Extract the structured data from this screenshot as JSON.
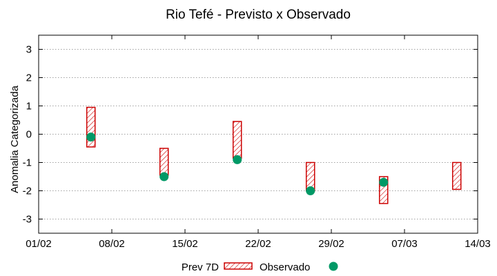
{
  "chart_data": {
    "type": "range-scatter",
    "title": "Rio Tefé - Previsto x Observado",
    "ylabel": "Anomalia Categorizada",
    "xlabel": "",
    "ylim": [
      -3.5,
      3.5
    ],
    "yticks": [
      -3,
      -2,
      -1,
      0,
      1,
      2,
      3
    ],
    "xlim": [
      "2024-02-01",
      "2024-03-14"
    ],
    "xticks": [
      {
        "date": "2024-02-01",
        "label": "01/02"
      },
      {
        "date": "2024-02-08",
        "label": "08/02"
      },
      {
        "date": "2024-02-15",
        "label": "15/02"
      },
      {
        "date": "2024-02-22",
        "label": "22/02"
      },
      {
        "date": "2024-02-29",
        "label": "29/02"
      },
      {
        "date": "2024-03-07",
        "label": "07/03"
      },
      {
        "date": "2024-03-14",
        "label": "14/03"
      }
    ],
    "grid": true,
    "legend_position": "bottom",
    "series": [
      {
        "name": "Prev 7D",
        "kind": "range",
        "color": "#cc0000",
        "points": [
          {
            "date": "2024-02-06",
            "low": -0.45,
            "high": 0.95
          },
          {
            "date": "2024-02-13",
            "low": -1.45,
            "high": -0.5
          },
          {
            "date": "2024-02-20",
            "low": -0.85,
            "high": 0.45
          },
          {
            "date": "2024-02-27",
            "low": -2.0,
            "high": -1.0
          },
          {
            "date": "2024-03-05",
            "low": -2.45,
            "high": -1.5
          },
          {
            "date": "2024-03-12",
            "low": -1.95,
            "high": -1.0
          }
        ]
      },
      {
        "name": "Observado",
        "kind": "point",
        "color": "#009966",
        "points": [
          {
            "date": "2024-02-06",
            "y": -0.1
          },
          {
            "date": "2024-02-13",
            "y": -1.5
          },
          {
            "date": "2024-02-20",
            "y": -0.9
          },
          {
            "date": "2024-02-27",
            "y": -2.0
          },
          {
            "date": "2024-03-05",
            "y": -1.7
          }
        ]
      }
    ]
  }
}
